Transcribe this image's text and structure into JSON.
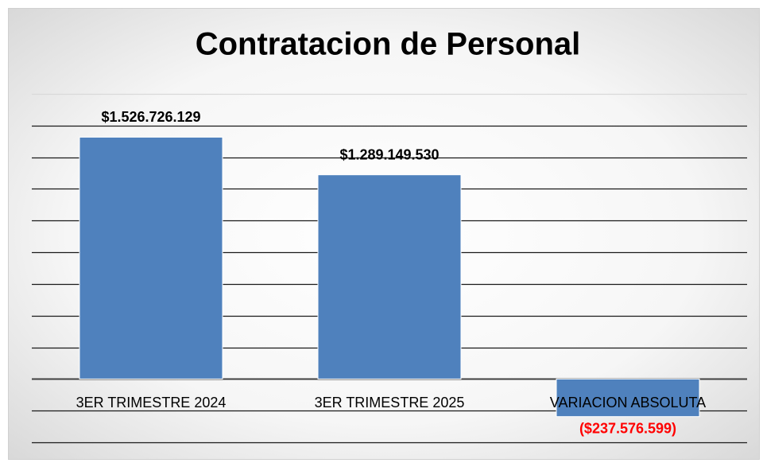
{
  "chart_data": {
    "type": "bar",
    "title": "Contratacion de Personal",
    "categories": [
      "3ER TRIMESTRE 2024",
      "3ER TRIMESTRE 2025",
      "VARIACION ABSOLUTA"
    ],
    "values": [
      1526726129,
      1289149530,
      -237576599
    ],
    "value_labels": [
      "$1.526.726.129",
      "$1.289.149.530",
      "($237.576.599)"
    ],
    "color": "#4f81bd",
    "label_color": "#000000",
    "negative_label_color": "#ff0000",
    "ylim": [
      -400000000,
      1800000000
    ],
    "yticks": [
      -400000000,
      -200000000,
      0,
      200000000,
      400000000,
      600000000,
      800000000,
      1000000000,
      1200000000,
      1400000000,
      1600000000,
      1800000000
    ],
    "grid": true
  }
}
